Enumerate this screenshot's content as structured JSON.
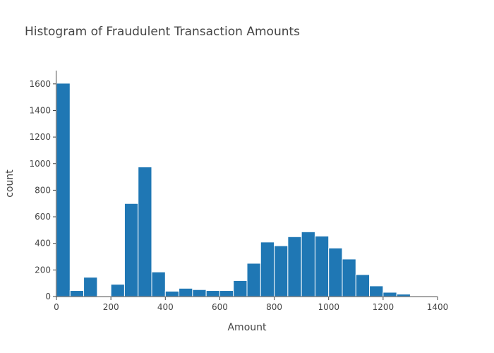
{
  "chart_data": {
    "type": "bar",
    "title": "Histogram of Fraudulent Transaction Amounts",
    "xlabel": "Amount",
    "ylabel": "count",
    "xlim": [
      0,
      1400
    ],
    "ylim": [
      0,
      1700
    ],
    "x_ticks": [
      0,
      200,
      400,
      600,
      800,
      1000,
      1200,
      1400
    ],
    "y_ticks": [
      0,
      200,
      400,
      600,
      800,
      1000,
      1200,
      1400,
      1600
    ],
    "bin_width": 50,
    "bin_starts": [
      0,
      50,
      100,
      150,
      200,
      250,
      300,
      350,
      400,
      450,
      500,
      550,
      600,
      650,
      700,
      750,
      800,
      850,
      900,
      950,
      1000,
      1050,
      1100,
      1150,
      1200,
      1250,
      1300,
      1350
    ],
    "values": [
      1605,
      45,
      145,
      5,
      92,
      700,
      975,
      185,
      40,
      62,
      52,
      45,
      45,
      120,
      250,
      410,
      382,
      450,
      487,
      455,
      365,
      282,
      165,
      80,
      32,
      18,
      4,
      2
    ],
    "bar_color": "#1f77b4",
    "bar_edge_color": "#ffffff",
    "grid": false
  }
}
